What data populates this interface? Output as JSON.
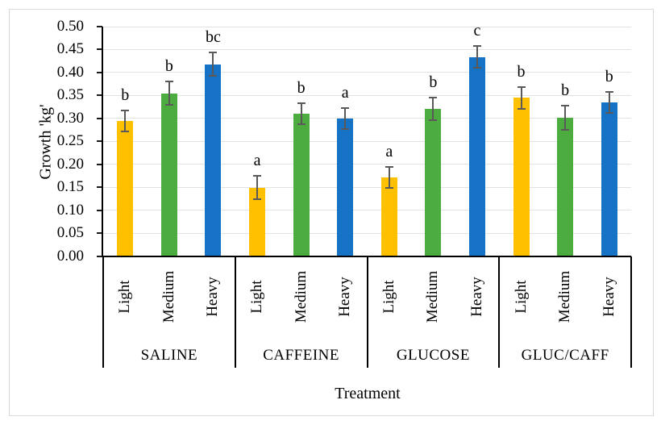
{
  "chart_data": {
    "type": "bar",
    "title": "",
    "xlabel": "Treatment",
    "ylabel": "Growth 'kg'",
    "ylim": [
      0,
      0.5
    ],
    "ytick_step": 0.05,
    "ytick_format_decimals": 2,
    "grid": true,
    "legend_position": "none",
    "series_levels": [
      "Light",
      "Medium",
      "Heavy"
    ],
    "colors": {
      "Light": "#FFC000",
      "Medium": "#4CAC3F",
      "Heavy": "#1572C4"
    },
    "error_bar_color": "#595959",
    "groups": [
      {
        "name": "SALINE",
        "bars": [
          {
            "level": "Light",
            "value": 0.295,
            "error": 0.023,
            "letter": "b"
          },
          {
            "level": "Medium",
            "value": 0.355,
            "error": 0.025,
            "letter": "b"
          },
          {
            "level": "Heavy",
            "value": 0.418,
            "error": 0.025,
            "letter": "bc"
          }
        ]
      },
      {
        "name": "CAFFEINE",
        "bars": [
          {
            "level": "Light",
            "value": 0.149,
            "error": 0.025,
            "letter": "a"
          },
          {
            "level": "Medium",
            "value": 0.31,
            "error": 0.023,
            "letter": "b"
          },
          {
            "level": "Heavy",
            "value": 0.3,
            "error": 0.023,
            "letter": "a"
          }
        ]
      },
      {
        "name": "GLUCOSE",
        "bars": [
          {
            "level": "Light",
            "value": 0.171,
            "error": 0.023,
            "letter": "a"
          },
          {
            "level": "Medium",
            "value": 0.321,
            "error": 0.025,
            "letter": "b"
          },
          {
            "level": "Heavy",
            "value": 0.434,
            "error": 0.023,
            "letter": "c"
          }
        ]
      },
      {
        "name": "GLUC/CAFF",
        "bars": [
          {
            "level": "Light",
            "value": 0.345,
            "error": 0.024,
            "letter": "b"
          },
          {
            "level": "Medium",
            "value": 0.301,
            "error": 0.026,
            "letter": "b"
          },
          {
            "level": "Heavy",
            "value": 0.335,
            "error": 0.023,
            "letter": "b"
          }
        ]
      }
    ]
  }
}
